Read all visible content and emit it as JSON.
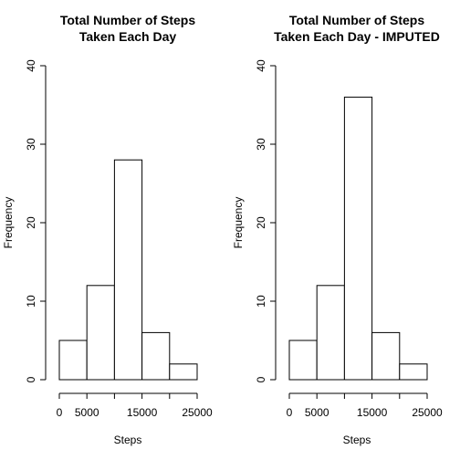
{
  "chart_data": [
    {
      "type": "bar",
      "title": [
        "Total Number of Steps",
        "Taken Each Day"
      ],
      "xlabel": "Steps",
      "ylabel": "Frequency",
      "bins": [
        [
          0,
          5000
        ],
        [
          5000,
          10000
        ],
        [
          10000,
          15000
        ],
        [
          15000,
          20000
        ],
        [
          20000,
          25000
        ]
      ],
      "values": [
        5,
        12,
        28,
        6,
        2
      ],
      "xlim": [
        0,
        25000
      ],
      "ylim": [
        0,
        40
      ],
      "xticks": [
        0,
        5000,
        10000,
        15000,
        20000,
        25000
      ],
      "xtick_labels": [
        "0",
        "5000",
        "",
        "15000",
        "",
        "25000"
      ],
      "yticks": [
        0,
        10,
        20,
        30,
        40
      ],
      "ytick_labels": [
        "0",
        "10",
        "20",
        "30",
        "40"
      ],
      "grid": false
    },
    {
      "type": "bar",
      "title": [
        "Total Number of Steps",
        "Taken Each Day - IMPUTED"
      ],
      "xlabel": "Steps",
      "ylabel": "Frequency",
      "bins": [
        [
          0,
          5000
        ],
        [
          5000,
          10000
        ],
        [
          10000,
          15000
        ],
        [
          15000,
          20000
        ],
        [
          20000,
          25000
        ]
      ],
      "values": [
        5,
        12,
        36,
        6,
        2
      ],
      "xlim": [
        0,
        25000
      ],
      "ylim": [
        0,
        40
      ],
      "xticks": [
        0,
        5000,
        10000,
        15000,
        20000,
        25000
      ],
      "xtick_labels": [
        "0",
        "5000",
        "",
        "15000",
        "",
        "25000"
      ],
      "yticks": [
        0,
        10,
        20,
        30,
        40
      ],
      "ytick_labels": [
        "0",
        "10",
        "20",
        "30",
        "40"
      ],
      "grid": false
    }
  ]
}
